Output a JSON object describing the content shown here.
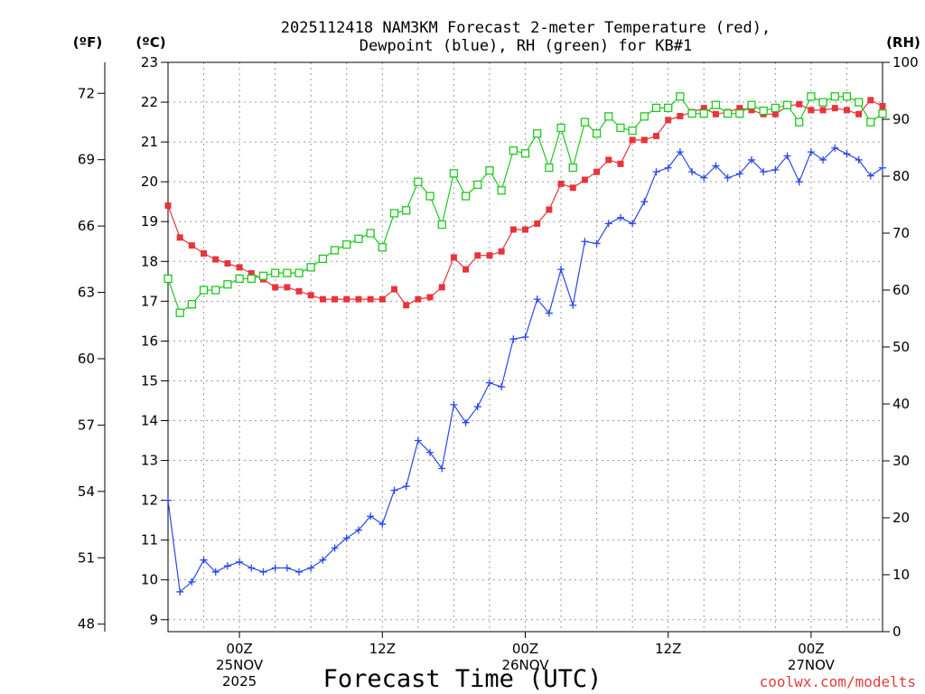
{
  "chart_data": {
    "type": "line",
    "title": "2025112418 NAM3KM Forecast 2-meter Temperature (red),",
    "subtitle": "Dewpoint (blue), RH (green) for KB#1",
    "xlabel": "Forecast Time (UTC)",
    "credit": "coolwx.com/modelts",
    "axes": {
      "left_outer_unit": "(ºF)",
      "left_inner_unit": "(ºC)",
      "right_unit": "(RH)",
      "celsius_ticks": [
        "23",
        "22",
        "21",
        "20",
        "19",
        "18",
        "17",
        "16",
        "15",
        "14",
        "13",
        "12",
        "11",
        "10",
        "9"
      ],
      "fahrenheit_ticks": [
        "72",
        "69",
        "66",
        "63",
        "60",
        "57",
        "54",
        "51",
        "48"
      ],
      "rh_ticks": [
        "100",
        "90",
        "80",
        "70",
        "60",
        "50",
        "40",
        "30",
        "20",
        "10",
        "0"
      ],
      "celsius_range": [
        8.7,
        23
      ],
      "rh_range": [
        0,
        100
      ],
      "x_range_hours": [
        0,
        60
      ]
    },
    "x_ticks": [
      {
        "hour": 6,
        "lines": [
          "00Z",
          "25NOV",
          "2025"
        ]
      },
      {
        "hour": 18,
        "lines": [
          "12Z",
          "",
          ""
        ]
      },
      {
        "hour": 30,
        "lines": [
          "00Z",
          "26NOV",
          ""
        ]
      },
      {
        "hour": 42,
        "lines": [
          "12Z",
          "",
          ""
        ]
      },
      {
        "hour": 54,
        "lines": [
          "00Z",
          "27NOV",
          ""
        ]
      }
    ],
    "grid": true,
    "series": [
      {
        "name": "Temperature",
        "unit": "°C",
        "color": "#e8343a",
        "marker": "filled-square",
        "x": [
          0,
          1,
          2,
          3,
          4,
          5,
          6,
          7,
          8,
          9,
          10,
          11,
          12,
          13,
          14,
          15,
          16,
          17,
          18,
          19,
          20,
          21,
          22,
          23,
          24,
          25,
          26,
          27,
          28,
          29,
          30,
          31,
          32,
          33,
          34,
          35,
          36,
          37,
          38,
          39,
          40,
          41,
          42,
          43,
          44,
          45,
          46,
          47,
          48,
          49,
          50,
          51,
          52,
          53,
          54,
          55,
          56,
          57,
          58,
          59,
          60
        ],
        "values": [
          19.4,
          18.6,
          18.4,
          18.2,
          18.05,
          17.95,
          17.85,
          17.7,
          17.55,
          17.35,
          17.35,
          17.25,
          17.15,
          17.05,
          17.05,
          17.05,
          17.05,
          17.05,
          17.05,
          17.3,
          16.9,
          17.05,
          17.1,
          17.35,
          18.1,
          17.8,
          18.15,
          18.15,
          18.25,
          18.8,
          18.8,
          18.95,
          19.3,
          19.95,
          19.85,
          20.05,
          20.25,
          20.55,
          20.45,
          21.05,
          21.05,
          21.15,
          21.55,
          21.65,
          21.75,
          21.85,
          21.7,
          21.75,
          21.85,
          21.8,
          21.7,
          21.7,
          21.9,
          21.95,
          21.8,
          21.8,
          21.85,
          21.8,
          21.7,
          22.05,
          21.9
        ]
      },
      {
        "name": "Dewpoint",
        "unit": "°C",
        "color": "#2a48e8",
        "marker": "plus",
        "x": [
          0,
          1,
          2,
          3,
          4,
          5,
          6,
          7,
          8,
          9,
          10,
          11,
          12,
          13,
          14,
          15,
          16,
          17,
          18,
          19,
          20,
          21,
          22,
          23,
          24,
          25,
          26,
          27,
          28,
          29,
          30,
          31,
          32,
          33,
          34,
          35,
          36,
          37,
          38,
          39,
          40,
          41,
          42,
          43,
          44,
          45,
          46,
          47,
          48,
          49,
          50,
          51,
          52,
          53,
          54,
          55,
          56,
          57,
          58,
          59,
          60
        ],
        "values": [
          12.0,
          9.7,
          9.95,
          10.5,
          10.2,
          10.35,
          10.45,
          10.3,
          10.2,
          10.3,
          10.3,
          10.2,
          10.3,
          10.5,
          10.8,
          11.05,
          11.25,
          11.6,
          11.4,
          12.25,
          12.35,
          13.5,
          13.2,
          12.8,
          14.4,
          13.95,
          14.35,
          14.95,
          14.85,
          16.05,
          16.1,
          17.05,
          16.7,
          17.8,
          16.9,
          18.5,
          18.45,
          18.95,
          19.1,
          18.95,
          19.5,
          20.25,
          20.35,
          20.75,
          20.25,
          20.1,
          20.4,
          20.1,
          20.2,
          20.55,
          20.25,
          20.3,
          20.65,
          20.0,
          20.75,
          20.55,
          20.85,
          20.7,
          20.55,
          20.15,
          20.35
        ]
      },
      {
        "name": "RH",
        "unit": "%",
        "color": "#1ec81e",
        "marker": "open-square",
        "x": [
          0,
          1,
          2,
          3,
          4,
          5,
          6,
          7,
          8,
          9,
          10,
          11,
          12,
          13,
          14,
          15,
          16,
          17,
          18,
          19,
          20,
          21,
          22,
          23,
          24,
          25,
          26,
          27,
          28,
          29,
          30,
          31,
          32,
          33,
          34,
          35,
          36,
          37,
          38,
          39,
          40,
          41,
          42,
          43,
          44,
          45,
          46,
          47,
          48,
          49,
          50,
          51,
          52,
          53,
          54,
          55,
          56,
          57,
          58,
          59,
          60
        ],
        "values": [
          62,
          56,
          57.5,
          60,
          60,
          61,
          62,
          62,
          62.5,
          63,
          63,
          63,
          64,
          65.5,
          67,
          68,
          69,
          70,
          67.5,
          73.5,
          74,
          79,
          76.5,
          71.5,
          80.5,
          76.5,
          78.5,
          81,
          77.5,
          84.5,
          84,
          87.5,
          81.5,
          88.5,
          81.5,
          89.5,
          87.5,
          90.5,
          88.5,
          88,
          90.5,
          92,
          92,
          94,
          91,
          91,
          92.5,
          91,
          91,
          92.5,
          91.5,
          92,
          92.5,
          89.5,
          94,
          93,
          94,
          94,
          93,
          89.5,
          91
        ]
      }
    ]
  }
}
